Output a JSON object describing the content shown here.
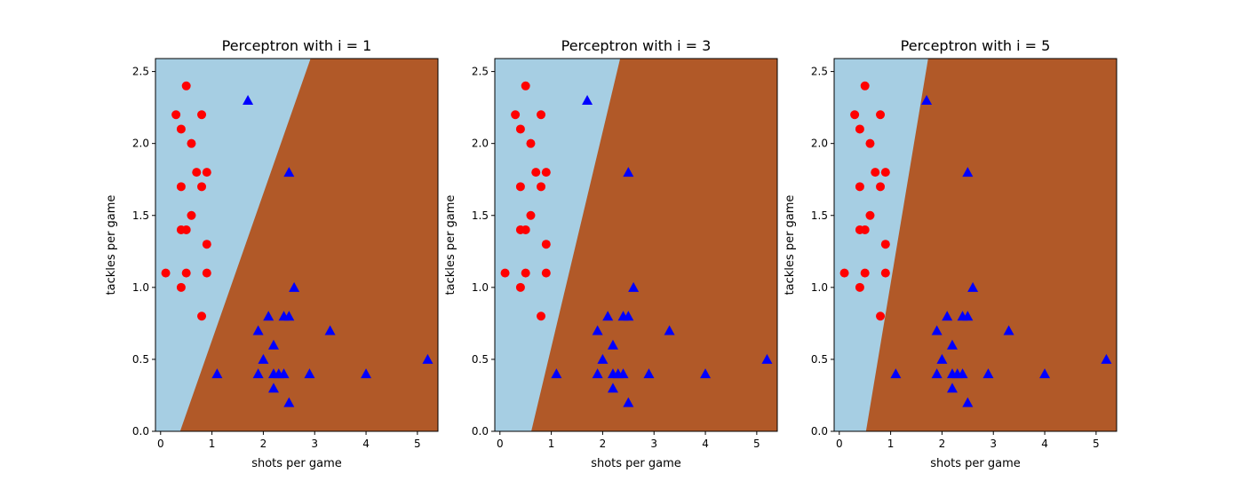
{
  "chart_data": [
    {
      "type": "scatter",
      "title": "Perceptron with i = 1",
      "xlabel": "shots per game",
      "ylabel": "tackles per game",
      "xlim": [
        -0.1,
        5.4
      ],
      "ylim": [
        0,
        2.59
      ],
      "xticks": [
        "0",
        "1",
        "2",
        "3",
        "4",
        "5"
      ],
      "yticks": [
        "0.0",
        "0.5",
        "1.0",
        "1.5",
        "2.0",
        "2.5"
      ],
      "regions": {
        "left_color": "#a6cee3",
        "right_color": "#b15928"
      },
      "decision_boundary": {
        "x_at_y_bottom": 0.38,
        "x_at_y_top": 2.92
      },
      "grid": false
    },
    {
      "type": "scatter",
      "title": "Perceptron with i = 3",
      "xlabel": "shots per game",
      "ylabel": "tackles per game",
      "xlim": [
        -0.1,
        5.4
      ],
      "ylim": [
        0,
        2.59
      ],
      "xticks": [
        "0",
        "1",
        "2",
        "3",
        "4",
        "5"
      ],
      "yticks": [
        "0.0",
        "0.5",
        "1.0",
        "1.5",
        "2.0",
        "2.5"
      ],
      "regions": {
        "left_color": "#a6cee3",
        "right_color": "#b15928"
      },
      "decision_boundary": {
        "x_at_y_bottom": 0.61,
        "x_at_y_top": 2.34
      },
      "grid": false
    },
    {
      "type": "scatter",
      "title": "Perceptron with i = 5",
      "xlabel": "shots per game",
      "ylabel": "tackles per game",
      "xlim": [
        -0.1,
        5.4
      ],
      "ylim": [
        0,
        2.59
      ],
      "xticks": [
        "0",
        "1",
        "2",
        "3",
        "4",
        "5"
      ],
      "yticks": [
        "0.0",
        "0.5",
        "1.0",
        "1.5",
        "2.0",
        "2.5"
      ],
      "regions": {
        "left_color": "#a6cee3",
        "right_color": "#b15928"
      },
      "decision_boundary": {
        "x_at_y_bottom": 0.52,
        "x_at_y_top": 1.73
      },
      "grid": false
    }
  ],
  "series": [
    {
      "marker": "circle",
      "color": "#ff0000",
      "points": [
        [
          0.1,
          1.1
        ],
        [
          0.3,
          2.2
        ],
        [
          0.4,
          2.1
        ],
        [
          0.4,
          1.7
        ],
        [
          0.4,
          1.4
        ],
        [
          0.4,
          1.0
        ],
        [
          0.5,
          2.4
        ],
        [
          0.5,
          1.4
        ],
        [
          0.5,
          1.1
        ],
        [
          0.6,
          2.0
        ],
        [
          0.6,
          1.5
        ],
        [
          0.7,
          1.8
        ],
        [
          0.8,
          2.2
        ],
        [
          0.8,
          1.7
        ],
        [
          0.8,
          0.8
        ],
        [
          0.9,
          1.8
        ],
        [
          0.9,
          1.3
        ],
        [
          0.9,
          1.1
        ]
      ]
    },
    {
      "marker": "triangle",
      "color": "#0000ff",
      "points": [
        [
          1.7,
          2.3
        ],
        [
          2.5,
          1.8
        ],
        [
          2.6,
          1.0
        ],
        [
          2.1,
          0.8
        ],
        [
          2.4,
          0.8
        ],
        [
          2.5,
          0.8
        ],
        [
          1.9,
          0.7
        ],
        [
          3.3,
          0.7
        ],
        [
          2.2,
          0.6
        ],
        [
          2.0,
          0.5
        ],
        [
          5.2,
          0.5
        ],
        [
          1.1,
          0.4
        ],
        [
          1.9,
          0.4
        ],
        [
          2.2,
          0.4
        ],
        [
          2.3,
          0.4
        ],
        [
          2.4,
          0.4
        ],
        [
          2.9,
          0.4
        ],
        [
          4.0,
          0.4
        ],
        [
          2.2,
          0.3
        ],
        [
          2.5,
          0.2
        ]
      ]
    }
  ]
}
